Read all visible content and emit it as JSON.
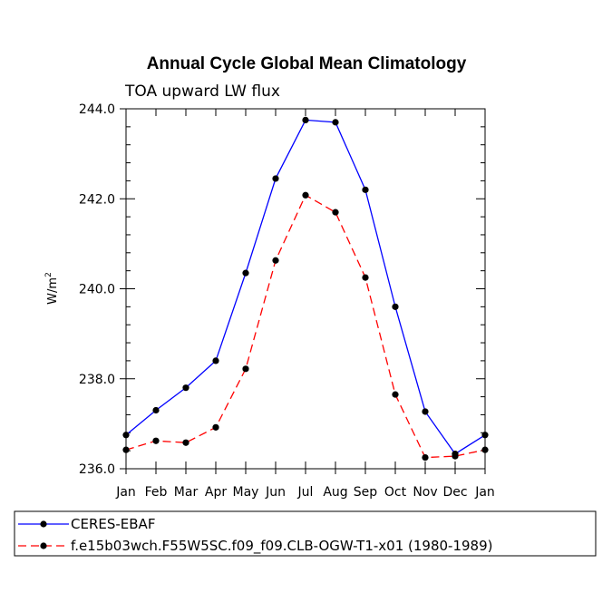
{
  "chart_data": {
    "type": "line",
    "title": "Annual Cycle Global Mean Climatology",
    "subtitle": "TOA upward LW flux",
    "xlabel": "",
    "ylabel": "W/m",
    "ylabel_superscript": "2",
    "categories": [
      "Jan",
      "Feb",
      "Mar",
      "Apr",
      "May",
      "Jun",
      "Jul",
      "Aug",
      "Sep",
      "Oct",
      "Nov",
      "Dec",
      "Jan"
    ],
    "ylim": [
      236.0,
      244.0
    ],
    "yticks": [
      "236.0",
      "238.0",
      "240.0",
      "242.0",
      "244.0"
    ],
    "series": [
      {
        "name": "CERES-EBAF",
        "color": "#0000ff",
        "dash": "solid",
        "values": [
          236.75,
          237.3,
          237.8,
          238.4,
          240.35,
          242.45,
          243.75,
          243.7,
          242.2,
          239.6,
          237.27,
          236.33,
          236.75
        ]
      },
      {
        "name": "f.e15b03wch.F55W5SC.f09_f09.CLB-OGW-T1-x01 (1980-1989)",
        "color": "#ff0000",
        "dash": "dashed",
        "values": [
          236.42,
          236.62,
          236.58,
          236.92,
          238.22,
          240.63,
          242.08,
          241.7,
          240.25,
          237.65,
          236.25,
          236.28,
          236.42
        ]
      }
    ],
    "legend_position": "bottom-left",
    "marker_color": "#000000"
  }
}
